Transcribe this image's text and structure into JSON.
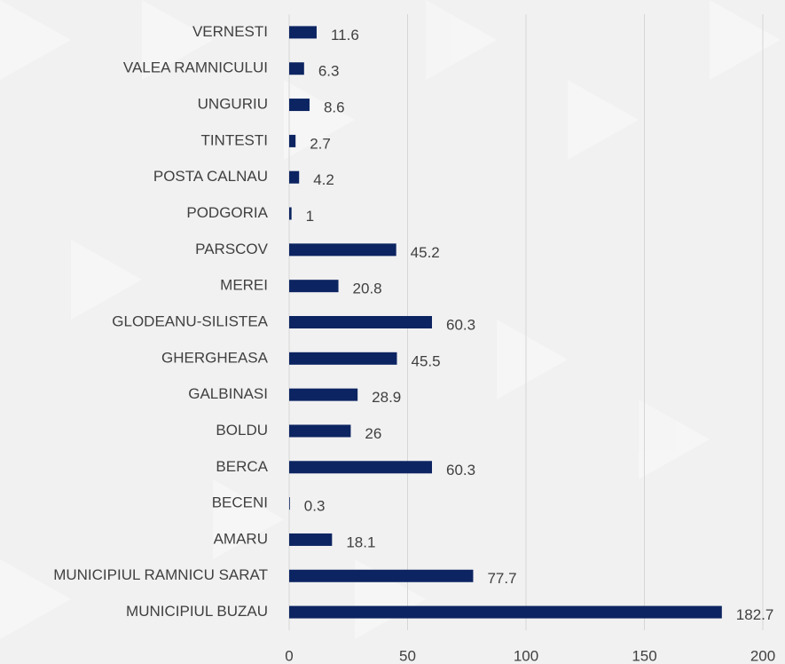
{
  "chart_data": {
    "type": "barh",
    "categories": [
      "VERNESTI",
      "VALEA RAMNICULUI",
      "UNGURIU",
      "TINTESTI",
      "POSTA CALNAU",
      "PODGORIA",
      "PARSCOV",
      "MEREI",
      "GLODEANU-SILISTEA",
      "GHERGHEASA",
      "GALBINASI",
      "BOLDU",
      "BERCA",
      "BECENI",
      "AMARU",
      "MUNICIPIUL RAMNICU SARAT",
      "MUNICIPIUL BUZAU"
    ],
    "values": [
      11.6,
      6.3,
      8.6,
      2.7,
      4.2,
      1,
      45.2,
      20.8,
      60.3,
      45.5,
      28.9,
      26,
      60.3,
      0.3,
      18.1,
      77.7,
      182.7
    ],
    "color": "#0c2461",
    "xlim": [
      0,
      200
    ],
    "xticks": [
      0,
      50,
      100,
      150,
      200
    ],
    "grid": true
  }
}
